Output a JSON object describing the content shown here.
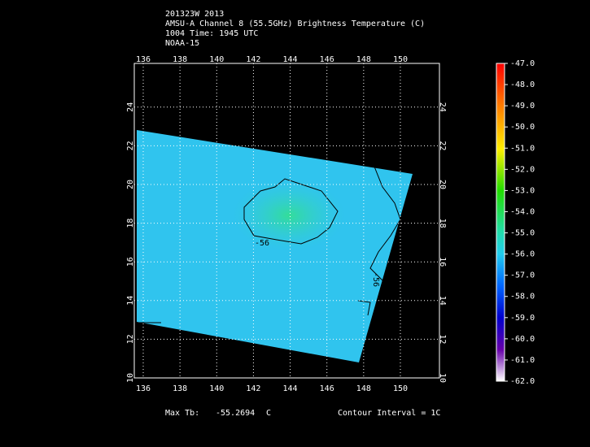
{
  "header": {
    "lines": [
      "201323W 2013",
      "AMSU-A Channel 8 (55.5GHz) Brightness Temperature (C)",
      "1004 Time: 1945 UTC",
      "NOAA-15"
    ]
  },
  "map": {
    "lon_ticks": [
      136,
      138,
      140,
      142,
      144,
      146,
      148,
      150
    ],
    "lat_ticks": [
      10,
      12,
      14,
      16,
      18,
      20,
      22,
      24
    ],
    "contour_labels": [
      "-56",
      "-56"
    ]
  },
  "colorbar": {
    "levels": [
      "-47.0",
      "-48.0",
      "-49.0",
      "-50.0",
      "-51.0",
      "-52.0",
      "-53.0",
      "-54.0",
      "-55.0",
      "-56.0",
      "-57.0",
      "-58.0",
      "-59.0",
      "-60.0",
      "-61.0",
      "-62.0"
    ]
  },
  "footer": {
    "max_label": "Max Tb:",
    "max_value": "-55.2694",
    "max_unit": "C",
    "contour_interval": "Contour Interval = 1C"
  }
}
